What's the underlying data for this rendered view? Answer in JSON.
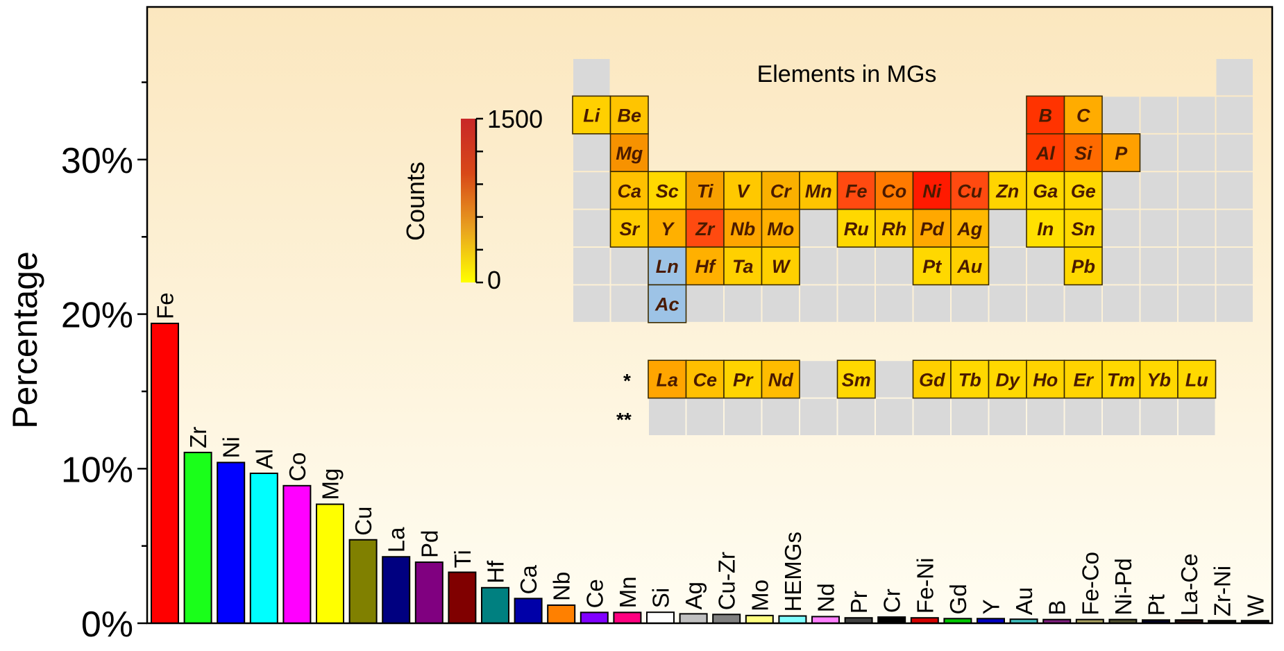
{
  "chart_data": [
    {
      "type": "bar",
      "ylabel": "Percentage",
      "ylim": [
        0,
        40
      ],
      "yticks": [
        "0%",
        "10%",
        "20%",
        "30%"
      ],
      "yticks_values": [
        0,
        10,
        20,
        30
      ],
      "minor_tick_step": 5,
      "grid": false,
      "background_gradient": [
        "#fbe7bf",
        "#fffdf2"
      ],
      "categories": [
        "Fe",
        "Zr",
        "Ni",
        "Al",
        "Co",
        "Mg",
        "Cu",
        "La",
        "Pd",
        "Ti",
        "Hf",
        "Ca",
        "Nb",
        "Ce",
        "Mn",
        "Si",
        "Ag",
        "Cu-Zr",
        "Mo",
        "HEMGs",
        "Nd",
        "Pr",
        "Cr",
        "Fe-Ni",
        "Gd",
        "Y",
        "Au",
        "B",
        "Fe-Co",
        "Ni-Pd",
        "Pt",
        "La-Ce",
        "Zr-Ni",
        "W"
      ],
      "values": [
        19.4,
        11.05,
        10.4,
        9.7,
        8.9,
        7.7,
        5.4,
        4.3,
        3.95,
        3.3,
        2.3,
        1.6,
        1.17,
        0.7,
        0.7,
        0.71,
        0.61,
        0.57,
        0.5,
        0.47,
        0.43,
        0.35,
        0.4,
        0.35,
        0.3,
        0.3,
        0.26,
        0.24,
        0.24,
        0.24,
        0.21,
        0.21,
        0.17,
        0.17
      ],
      "colors": [
        "#ff0000",
        "#1aff1a",
        "#0000ff",
        "#00ffff",
        "#ff00ff",
        "#ffff00",
        "#808000",
        "#000080",
        "#800080",
        "#800000",
        "#008080",
        "#0000a8",
        "#ff8000",
        "#8000ff",
        "#ff0080",
        "#ffffff",
        "#c0c0c0",
        "#808080",
        "#ffff80",
        "#80ffff",
        "#ff80ff",
        "#404040",
        "#000000",
        "#d40000",
        "#00c800",
        "#0000c0",
        "#40c0c0",
        "#802080",
        "#a8a060",
        "#505030",
        "#000020",
        "#201010",
        "#101010",
        "#101010"
      ]
    },
    {
      "type": "heatmap",
      "title": "Elements in MGs",
      "colorbar": {
        "label": "Counts",
        "min_label": "0",
        "max_label": "1500",
        "range": [
          0,
          1500
        ],
        "colors": [
          "#ffff00",
          "#e8a020",
          "#d84818",
          "#c82828"
        ]
      },
      "table_markers": [
        "*",
        "**"
      ],
      "empty_cell_color": "#d9d9d9",
      "series_placeholder_color": "#9dc3e6",
      "elements": [
        {
          "symbol": "Li",
          "row": 2,
          "col": 1,
          "color": "#ffd000"
        },
        {
          "symbol": "Be",
          "row": 2,
          "col": 2,
          "color": "#ffc400"
        },
        {
          "symbol": "B",
          "row": 2,
          "col": 13,
          "color": "#ff3300"
        },
        {
          "symbol": "C",
          "row": 2,
          "col": 14,
          "color": "#ffac00"
        },
        {
          "symbol": "Mg",
          "row": 3,
          "col": 2,
          "color": "#f79200"
        },
        {
          "symbol": "Al",
          "row": 3,
          "col": 13,
          "color": "#ff3a00"
        },
        {
          "symbol": "Si",
          "row": 3,
          "col": 14,
          "color": "#ff6a00"
        },
        {
          "symbol": "P",
          "row": 3,
          "col": 15,
          "color": "#ffa000"
        },
        {
          "symbol": "Ca",
          "row": 4,
          "col": 2,
          "color": "#ffc000"
        },
        {
          "symbol": "Sc",
          "row": 4,
          "col": 3,
          "color": "#ffd800"
        },
        {
          "symbol": "Ti",
          "row": 4,
          "col": 4,
          "color": "#f8a000"
        },
        {
          "symbol": "V",
          "row": 4,
          "col": 5,
          "color": "#ffc800"
        },
        {
          "symbol": "Cr",
          "row": 4,
          "col": 6,
          "color": "#fab000"
        },
        {
          "symbol": "Mn",
          "row": 4,
          "col": 7,
          "color": "#ffc400"
        },
        {
          "symbol": "Fe",
          "row": 4,
          "col": 8,
          "color": "#ff4a10"
        },
        {
          "symbol": "Co",
          "row": 4,
          "col": 9,
          "color": "#ff7a00"
        },
        {
          "symbol": "Ni",
          "row": 4,
          "col": 10,
          "color": "#ff1a00"
        },
        {
          "symbol": "Cu",
          "row": 4,
          "col": 11,
          "color": "#ff4a10"
        },
        {
          "symbol": "Zn",
          "row": 4,
          "col": 12,
          "color": "#ffd400"
        },
        {
          "symbol": "Ga",
          "row": 4,
          "col": 13,
          "color": "#ffd800"
        },
        {
          "symbol": "Ge",
          "row": 4,
          "col": 14,
          "color": "#ffd800"
        },
        {
          "symbol": "Sr",
          "row": 5,
          "col": 2,
          "color": "#ffcc00"
        },
        {
          "symbol": "Y",
          "row": 5,
          "col": 3,
          "color": "#ffb000"
        },
        {
          "symbol": "Zr",
          "row": 5,
          "col": 4,
          "color": "#ff4a10"
        },
        {
          "symbol": "Nb",
          "row": 5,
          "col": 5,
          "color": "#ffa500"
        },
        {
          "symbol": "Mo",
          "row": 5,
          "col": 6,
          "color": "#ffb000"
        },
        {
          "symbol": "Ru",
          "row": 5,
          "col": 8,
          "color": "#ffd800"
        },
        {
          "symbol": "Rh",
          "row": 5,
          "col": 9,
          "color": "#ffcc00"
        },
        {
          "symbol": "Pd",
          "row": 5,
          "col": 10,
          "color": "#ffa800"
        },
        {
          "symbol": "Ag",
          "row": 5,
          "col": 11,
          "color": "#ffb800"
        },
        {
          "symbol": "In",
          "row": 5,
          "col": 13,
          "color": "#ffe000"
        },
        {
          "symbol": "Sn",
          "row": 5,
          "col": 14,
          "color": "#ffd800"
        },
        {
          "symbol": "Ln",
          "row": 6,
          "col": 3,
          "color": "#9dc3e6",
          "text_color": "#ffff33"
        },
        {
          "symbol": "Hf",
          "row": 6,
          "col": 4,
          "color": "#ffb000"
        },
        {
          "symbol": "Ta",
          "row": 6,
          "col": 5,
          "color": "#ffd000"
        },
        {
          "symbol": "W",
          "row": 6,
          "col": 6,
          "color": "#ffd000"
        },
        {
          "symbol": "Pt",
          "row": 6,
          "col": 10,
          "color": "#ffd800"
        },
        {
          "symbol": "Au",
          "row": 6,
          "col": 11,
          "color": "#ffd000"
        },
        {
          "symbol": "Pb",
          "row": 6,
          "col": 14,
          "color": "#ffd800"
        },
        {
          "symbol": "Ac",
          "row": 7,
          "col": 3,
          "color": "#9dc3e6",
          "text_color": "#ffff33"
        },
        {
          "symbol": "La",
          "row": 9,
          "col": 3,
          "color": "#ffa500"
        },
        {
          "symbol": "Ce",
          "row": 9,
          "col": 4,
          "color": "#ffc000"
        },
        {
          "symbol": "Pr",
          "row": 9,
          "col": 5,
          "color": "#ffd400"
        },
        {
          "symbol": "Nd",
          "row": 9,
          "col": 6,
          "color": "#ffbc00"
        },
        {
          "symbol": "Sm",
          "row": 9,
          "col": 8,
          "color": "#ffd800"
        },
        {
          "symbol": "Gd",
          "row": 9,
          "col": 10,
          "color": "#ffd000"
        },
        {
          "symbol": "Tb",
          "row": 9,
          "col": 11,
          "color": "#ffd800"
        },
        {
          "symbol": "Dy",
          "row": 9,
          "col": 12,
          "color": "#ffd800"
        },
        {
          "symbol": "Ho",
          "row": 9,
          "col": 13,
          "color": "#ffd400"
        },
        {
          "symbol": "Er",
          "row": 9,
          "col": 14,
          "color": "#ffd400"
        },
        {
          "symbol": "Tm",
          "row": 9,
          "col": 15,
          "color": "#ffd800"
        },
        {
          "symbol": "Yb",
          "row": 9,
          "col": 16,
          "color": "#ffd800"
        },
        {
          "symbol": "Lu",
          "row": 9,
          "col": 17,
          "color": "#ffd800"
        }
      ]
    }
  ]
}
